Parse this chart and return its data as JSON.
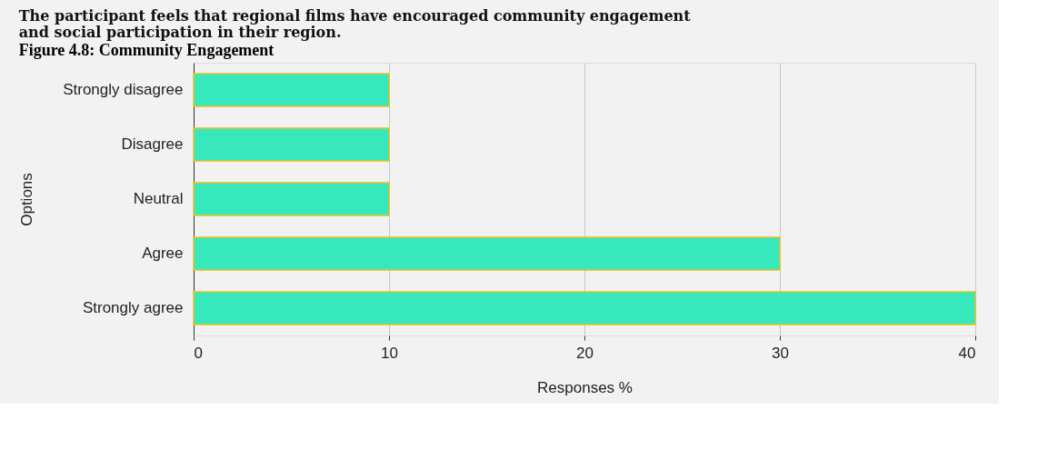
{
  "chart_data": {
    "type": "bar",
    "orientation": "horizontal",
    "title": "The participant feels that regional films have encouraged community engagement and social participation in their region.",
    "annotations": [
      "Figure 4.8: Community Engagement"
    ],
    "categories": [
      "Strongly disagree",
      "Disagree",
      "Neutral",
      "Agree",
      "Strongly agree"
    ],
    "values": [
      10,
      10,
      10,
      30,
      40
    ],
    "color": "#36e8bb",
    "xlabel": "Responses %",
    "ylabel": "Options",
    "xlim": [
      0,
      40
    ],
    "xticks": [
      0,
      10,
      20,
      30,
      40
    ],
    "grid": "x"
  }
}
